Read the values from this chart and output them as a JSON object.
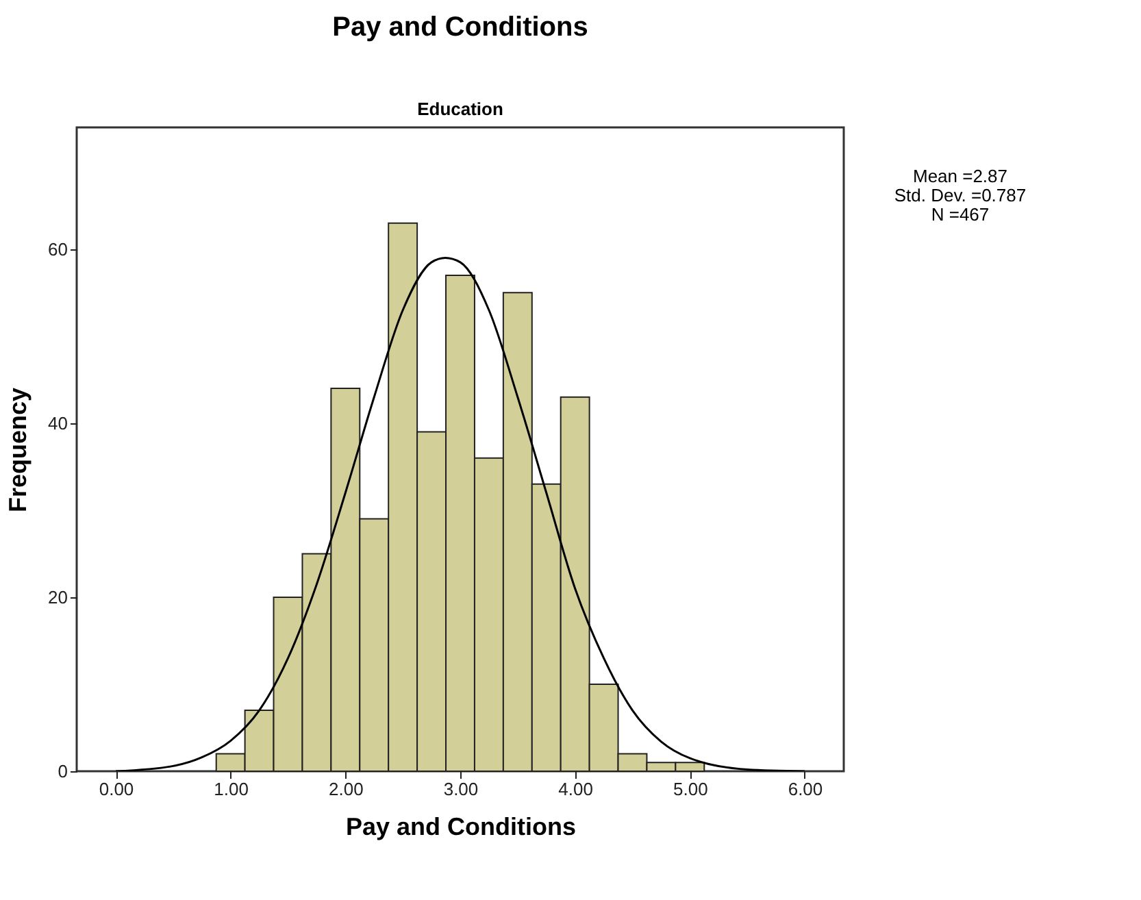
{
  "chart_data": {
    "type": "histogram",
    "title": "Pay and Conditions",
    "subtitle": "Education",
    "xlabel": "Pay and Conditions",
    "ylabel": "Frequency",
    "bins": [
      0.875,
      1.125,
      1.375,
      1.625,
      1.875,
      2.125,
      2.375,
      2.625,
      2.875,
      3.125,
      3.375,
      3.625,
      3.875,
      4.125,
      4.375,
      4.625,
      4.875,
      5.125
    ],
    "values": [
      2,
      7,
      20,
      25,
      44,
      29,
      63,
      39,
      57,
      36,
      55,
      33,
      43,
      10,
      2,
      1,
      1
    ],
    "color": "#d3cf98",
    "series": [
      {
        "type": "line",
        "color": "#000000",
        "x": [
          0,
          0.5,
          0.75,
          1,
          1.25,
          1.5,
          1.75,
          2,
          2.25,
          2.5,
          2.75,
          2.87,
          3,
          3.25,
          3.5,
          3.75,
          4,
          4.25,
          4.5,
          4.75,
          5,
          5.5,
          6
        ],
        "values": [
          0,
          0.6,
          1.6,
          3.5,
          7,
          13,
          21.5,
          32,
          43,
          53,
          58.5,
          59,
          58.5,
          53,
          43,
          32,
          21,
          13,
          7,
          3.4,
          1.5,
          0.2,
          0
        ]
      }
    ],
    "xlim": [
      -0.34,
      6.34
    ],
    "ylim": [
      0,
      74
    ],
    "xticks": [
      {
        "value": 0,
        "label": "0.00"
      },
      {
        "value": 1,
        "label": "1.00"
      },
      {
        "value": 2,
        "label": "2.00"
      },
      {
        "value": 3,
        "label": "3.00"
      },
      {
        "value": 4,
        "label": "4.00"
      },
      {
        "value": 5,
        "label": "5.00"
      },
      {
        "value": 6,
        "label": "6.00"
      }
    ],
    "yticks": [
      0,
      20,
      40,
      60
    ],
    "grid": false,
    "annotations": [
      "Mean =2.87",
      "Std. Dev. =0.787",
      "N =467"
    ]
  }
}
